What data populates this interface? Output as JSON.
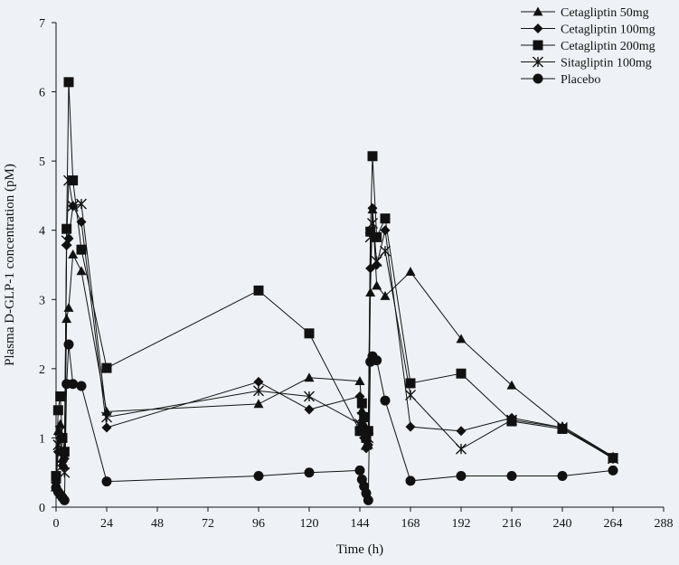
{
  "chart_data": {
    "type": "line",
    "title": "",
    "xlabel": "Time (h)",
    "ylabel": "Plasma D-GLP-1 concentration (pM)",
    "xlim": [
      0,
      288
    ],
    "ylim": [
      0,
      7
    ],
    "xticks": [
      0,
      24,
      48,
      72,
      96,
      120,
      144,
      168,
      192,
      216,
      240,
      264,
      288
    ],
    "yticks": [
      0,
      1,
      2,
      3,
      4,
      5,
      6,
      7
    ],
    "grid": false,
    "legend_position": "top-right",
    "x": [
      0,
      1,
      2,
      3,
      4,
      5,
      6,
      8,
      12,
      24,
      96,
      120,
      144,
      145,
      146,
      147,
      148,
      149,
      150,
      152,
      156,
      168,
      192,
      216,
      240,
      264
    ],
    "series": [
      {
        "name": "Cetagliptin 50mg",
        "marker": "triangle",
        "values": [
          0.4,
          1.1,
          1.2,
          0.7,
          0.6,
          2.72,
          2.88,
          3.65,
          3.41,
          1.38,
          1.49,
          1.87,
          1.82,
          1.4,
          1.2,
          0.9,
          0.9,
          3.1,
          4.3,
          3.2,
          3.05,
          3.4,
          2.43,
          1.76,
          1.17,
          0.73
        ]
      },
      {
        "name": "Cetagliptin 100mg",
        "marker": "diamond",
        "values": [
          0.35,
          0.8,
          1.0,
          0.6,
          0.7,
          3.78,
          3.88,
          4.35,
          4.12,
          1.15,
          1.81,
          1.41,
          1.6,
          1.2,
          1.0,
          0.85,
          0.9,
          3.45,
          4.32,
          3.5,
          4.0,
          1.16,
          1.1,
          1.29,
          1.15,
          0.72
        ]
      },
      {
        "name": "Cetagliptin 200mg",
        "marker": "square",
        "values": [
          0.45,
          1.4,
          1.6,
          1.0,
          0.8,
          4.02,
          6.14,
          4.72,
          3.72,
          2.01,
          3.13,
          2.51,
          1.1,
          1.5,
          1.3,
          1.0,
          1.1,
          3.98,
          5.07,
          3.9,
          4.17,
          1.79,
          1.93,
          1.24,
          1.13,
          0.71
        ]
      },
      {
        "name": "Sitagliptin 100mg",
        "marker": "star",
        "values": [
          0.3,
          0.9,
          1.1,
          0.6,
          0.5,
          3.85,
          4.72,
          4.35,
          4.38,
          1.3,
          1.68,
          1.6,
          1.2,
          1.3,
          1.1,
          0.9,
          1.0,
          3.9,
          4.1,
          3.55,
          3.7,
          1.62,
          0.84,
          1.26,
          1.15,
          0.7
        ]
      },
      {
        "name": "Placebo",
        "marker": "circle",
        "values": [
          0.28,
          0.22,
          0.18,
          0.14,
          0.1,
          1.78,
          2.35,
          1.78,
          1.75,
          0.37,
          0.45,
          0.5,
          0.53,
          0.4,
          0.3,
          0.2,
          0.1,
          2.1,
          2.18,
          2.12,
          1.54,
          0.38,
          0.45,
          0.45,
          0.45,
          0.53
        ]
      }
    ],
    "colors": {
      "line": "#111111",
      "background": "#eef2f6"
    }
  }
}
